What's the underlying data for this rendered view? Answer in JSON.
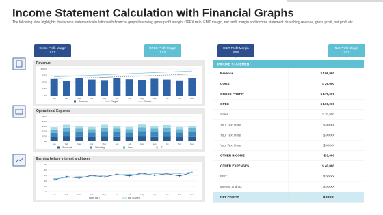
{
  "title": "Income Statement Calculation with Financial Graphs",
  "subtitle": "The following slide highlights the income statement calculation with financial graph illustrating gross profit margin, OPEX ratio, EBIT margin, net profit  margin and income statement describing revenue, gross profit, net profit etc.",
  "callouts": [
    {
      "label": "Gross Profit Margin",
      "value": "XXX",
      "color": "#2d4f8e"
    },
    {
      "label": "OPEX Profit Margin",
      "value": "XXX",
      "color": "#5fbfd3"
    },
    {
      "label": "EBIT Profit Margin",
      "value": "XXX",
      "color": "#2d4f8e"
    },
    {
      "label": "Net Profit Margin",
      "value": "XXX",
      "color": "#5fbfd3"
    }
  ],
  "panels": [
    {
      "type": "bar-line",
      "title": "Revenue",
      "categories": [
        "Jan",
        "Feb",
        "Mar",
        "Apr",
        "May",
        "Jun",
        "Jul",
        "Aug",
        "Sep",
        "Oct",
        "Nov",
        "Dec"
      ],
      "series": [
        {
          "name": "Revenue",
          "color": "#2f63a8",
          "kind": "bar",
          "values": [
            620,
            560,
            640,
            600,
            580,
            650,
            610,
            590,
            630,
            600,
            570,
            640
          ]
        },
        {
          "name": "Target",
          "color": "#8c8c8c",
          "kind": "dashed",
          "values": [
            640,
            650,
            660,
            670,
            680,
            700,
            710,
            730,
            750,
            770,
            790,
            810
          ]
        },
        {
          "name": "Growth",
          "color": "#7ec8dc",
          "kind": "line",
          "values": [
            700,
            720,
            740,
            760,
            780,
            800,
            820,
            840,
            860,
            880,
            900,
            920
          ]
        }
      ],
      "ylim": [
        0,
        1000
      ],
      "yticks": [
        {
          "value": 0,
          "label": "$0"
        },
        {
          "value": 250,
          "label": "$250"
        },
        {
          "value": 500,
          "label": "$500"
        },
        {
          "value": 750,
          "label": "$750"
        },
        {
          "value": 1000,
          "label": "$1000"
        }
      ]
    },
    {
      "type": "stacked-bar",
      "title": "Operational Expense",
      "categories": [
        "Jan",
        "Feb",
        "Mar",
        "Apr",
        "May",
        "Jun",
        "Jul",
        "Aug",
        "Sep",
        "Oct",
        "Nov",
        "Dec"
      ],
      "series": [
        {
          "name": "Comercial",
          "color": "#2b5c8f",
          "values": [
            90,
            110,
            100,
            95,
            105,
            100,
            95,
            110,
            100,
            105,
            95,
            100
          ]
        },
        {
          "name": "Marketing",
          "color": "#3f87ba",
          "values": [
            80,
            90,
            85,
            80,
            95,
            85,
            80,
            95,
            85,
            90,
            80,
            90
          ]
        },
        {
          "name": "Sales",
          "color": "#66b3d3",
          "values": [
            70,
            80,
            75,
            70,
            80,
            75,
            70,
            80,
            75,
            80,
            70,
            75
          ]
        },
        {
          "name": "IT",
          "color": "#a8dbe8",
          "values": [
            50,
            60,
            55,
            50,
            60,
            55,
            50,
            60,
            55,
            60,
            50,
            55
          ]
        }
      ],
      "ylim": [
        0,
        500
      ],
      "yticks": [
        {
          "value": 0,
          "label": "$0"
        },
        {
          "value": 100,
          "label": "$100"
        },
        {
          "value": 200,
          "label": "$200"
        },
        {
          "value": 300,
          "label": "$300"
        },
        {
          "value": 400,
          "label": "$400"
        },
        {
          "value": 500,
          "label": "$500"
        }
      ]
    },
    {
      "type": "line",
      "title": "Earning before Interest and taxes",
      "categories": [
        "Jan",
        "Feb",
        "Mar",
        "Apr",
        "May",
        "Jun",
        "Jul",
        "Aug",
        "Sep",
        "Oct",
        "Nov",
        "Dec"
      ],
      "series": [
        {
          "name": "EBIT",
          "color": "#2b4f8e",
          "values": [
            22,
            28,
            25,
            30,
            27,
            32,
            29,
            34,
            30,
            33,
            29,
            35
          ]
        },
        {
          "name": "EBIT Target",
          "color": "#7ec8dc",
          "values": [
            24,
            26,
            28,
            27,
            30,
            31,
            32,
            31,
            33,
            34,
            33,
            36
          ]
        }
      ],
      "ylim": [
        0,
        50
      ],
      "yticks": [
        0,
        10,
        20,
        30,
        40,
        50
      ]
    }
  ],
  "table": {
    "header": "INCOME STATEMENT",
    "rows": [
      {
        "label": "Revenue",
        "value": "$ 196,000",
        "bold": true
      },
      {
        "label": "COGS",
        "value": "$  26,000",
        "bold": true
      },
      {
        "label": "GROSS PROFIT",
        "value": "$ 170,000",
        "bold": true
      },
      {
        "label": "OPEX",
        "value": "$ 100,000",
        "bold": true
      },
      {
        "label": "Sales",
        "value": "$ 20,000",
        "bold": false
      },
      {
        "label": "Your Text Here",
        "value": "$ XXXX",
        "bold": false
      },
      {
        "label": "Your Text Here",
        "value": "$ XXXX",
        "bold": false
      },
      {
        "label": "Your Text Here",
        "value": "$ XXXX",
        "bold": false
      },
      {
        "label": "OTHER INCOME",
        "value": "$  9,000",
        "bold": true
      },
      {
        "label": "OTHER EXPENSES",
        "value": "$ 40,000",
        "bold": true
      },
      {
        "label": "EBIT",
        "value": "$ XXXX",
        "bold": false
      },
      {
        "label": "Interest and tax",
        "value": "$ XXXX",
        "bold": false
      },
      {
        "label": "NET PROFIT",
        "value": "$ XXXX",
        "bold": true
      }
    ]
  }
}
